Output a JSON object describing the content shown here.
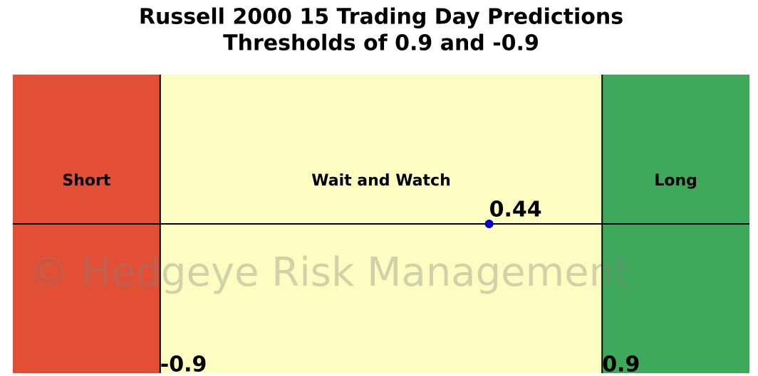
{
  "chart_data": {
    "type": "threshold",
    "title": "Russell 2000 15 Trading Day Predictions",
    "subtitle": "Thresholds of 0.9 and -0.9",
    "zones": [
      {
        "name": "Short",
        "color": "#e34f35"
      },
      {
        "name": "Wait and Watch",
        "color": "#fefdc1"
      },
      {
        "name": "Long",
        "color": "#3fa95b"
      }
    ],
    "thresholds": [
      -0.9,
      0.9
    ],
    "value": 0.44,
    "marker_color": "#0000cc",
    "xlim": [
      -1.5,
      1.5
    ],
    "watermark": "© Hedgeye Risk Management"
  }
}
